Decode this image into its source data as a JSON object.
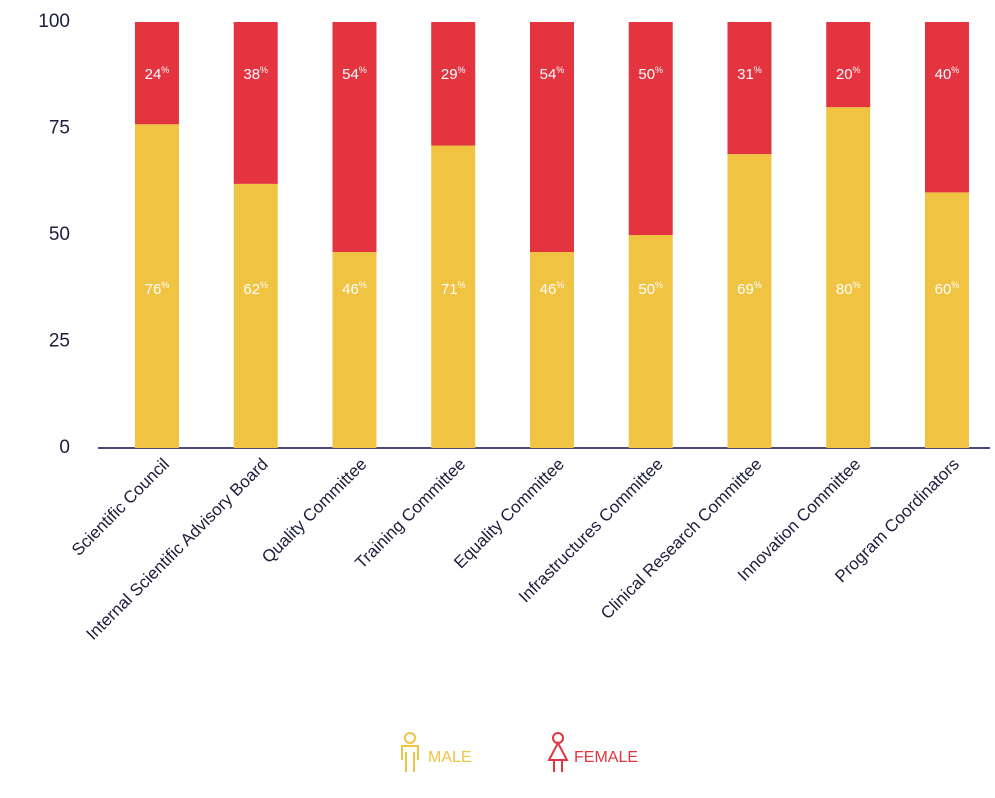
{
  "chart_data": {
    "type": "stacked_bar",
    "categories": [
      "Scientific Council",
      "Internal Scientific Advisory Board",
      "Quality Committee",
      "Training Committee",
      "Equality Committee",
      "Infrastructures Committee",
      "Clinical Research Committee",
      "Innovation Committee",
      "Program Coordinators"
    ],
    "series": [
      {
        "name": "MALE",
        "color": "#f0c342",
        "values": [
          76,
          62,
          46,
          71,
          46,
          50,
          69,
          80,
          60
        ],
        "value_labels": [
          "76%",
          "62%",
          "46%",
          "71%",
          "46%",
          "50%",
          "69%",
          "80%",
          "60%"
        ]
      },
      {
        "name": "FEMALE",
        "color": "#e3343f",
        "values": [
          24,
          38,
          54,
          29,
          54,
          50,
          31,
          20,
          40
        ],
        "value_labels": [
          "24%",
          "38%",
          "54%",
          "29%",
          "54%",
          "50%",
          "31%",
          "20%",
          "40%"
        ]
      }
    ],
    "ylim": [
      0,
      100
    ],
    "yticks": [
      0,
      25,
      50,
      75,
      100
    ],
    "grid": false
  }
}
